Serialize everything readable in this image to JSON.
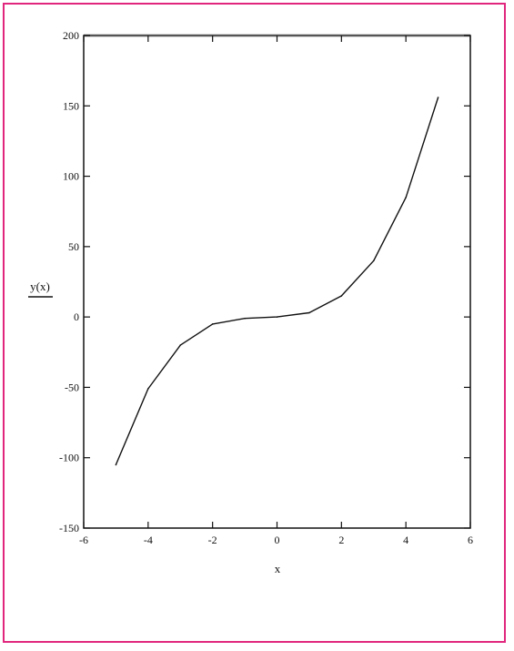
{
  "frame_color": "#e0267d",
  "chart_data": {
    "type": "line",
    "xlabel": "x",
    "ylabel": "y(x)",
    "xlim": [
      -6,
      6
    ],
    "ylim": [
      -150,
      200
    ],
    "xticks": [
      -6,
      -4,
      -2,
      0,
      2,
      4,
      6
    ],
    "yticks": [
      -150,
      -100,
      -50,
      0,
      50,
      100,
      150,
      200
    ],
    "xtick_labels": [
      "-6",
      "-4",
      "-2",
      "0",
      "2",
      "4",
      "6"
    ],
    "ytick_labels": [
      "-150",
      "-100",
      "-50",
      "0",
      "50",
      "100",
      "150",
      "200"
    ],
    "grid": false,
    "line_color": "#111111",
    "series": [
      {
        "x": [
          -5,
          -4,
          -3,
          -2,
          -1,
          0,
          1,
          2,
          3,
          4,
          5
        ],
        "y": [
          -105,
          -51,
          -20,
          -5,
          -1,
          0,
          3,
          15,
          40,
          85,
          156
        ]
      }
    ]
  }
}
